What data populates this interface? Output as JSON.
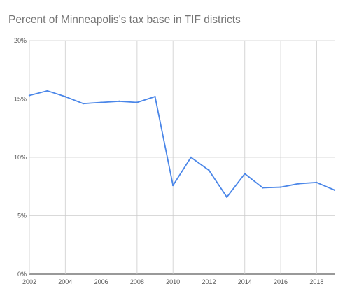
{
  "chart_data": {
    "type": "line",
    "title": "Percent of Minneapolis's tax base in TIF districts",
    "xlabel": "",
    "ylabel": "",
    "x": [
      2002,
      2003,
      2004,
      2005,
      2006,
      2007,
      2008,
      2009,
      2010,
      2011,
      2012,
      2013,
      2014,
      2015,
      2016,
      2017,
      2018,
      2019
    ],
    "series": [
      {
        "values": [
          15.3,
          15.7,
          15.2,
          14.6,
          14.7,
          14.8,
          14.7,
          15.2,
          7.6,
          10.0,
          8.9,
          6.6,
          8.6,
          7.4,
          7.45,
          7.75,
          7.85,
          7.2
        ]
      }
    ],
    "xlim": [
      2002,
      2019
    ],
    "ylim": [
      0,
      20
    ],
    "x_ticks": [
      "2002",
      "2004",
      "2006",
      "2008",
      "2010",
      "2012",
      "2014",
      "2016",
      "2018"
    ],
    "y_ticks": [
      "0%",
      "5%",
      "10%",
      "15%",
      "20%"
    ],
    "grid": true,
    "legend": "none",
    "colors": {
      "line": "#4a86e8",
      "grid": "#cccccc",
      "baseline": "#333333",
      "title": "#757575",
      "tick_text": "#555555"
    }
  }
}
